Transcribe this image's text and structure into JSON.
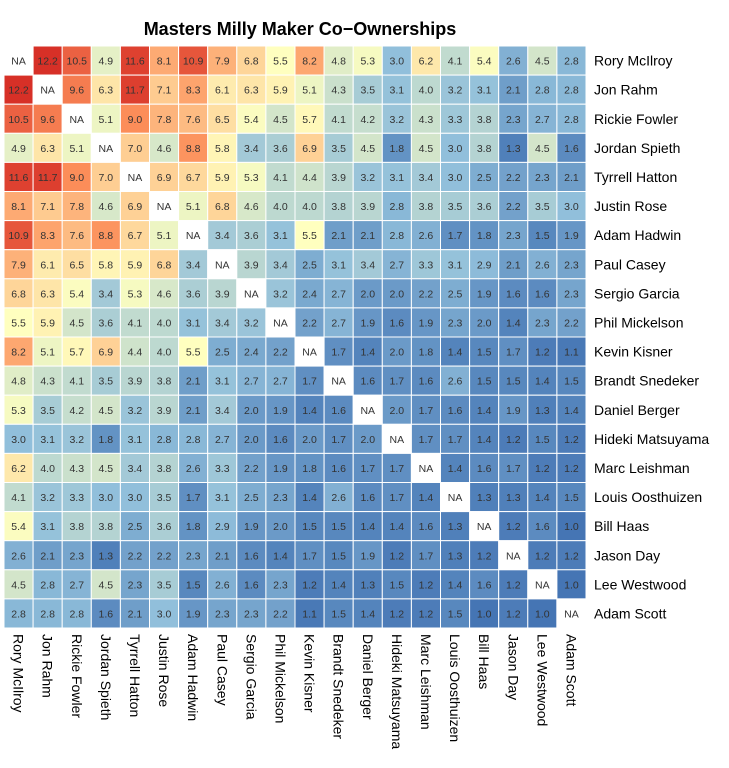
{
  "chart_data": {
    "type": "heatmap",
    "title": "Masters Milly Maker Co−Ownerships",
    "na_label": "NA",
    "rows": [
      "Rory McIlroy",
      "Jon Rahm",
      "Rickie Fowler",
      "Jordan Spieth",
      "Tyrrell Hatton",
      "Justin Rose",
      "Adam Hadwin",
      "Paul Casey",
      "Sergio Garcia",
      "Phil Mickelson",
      "Kevin Kisner",
      "Brandt Snedeker",
      "Daniel Berger",
      "Hideki Matsuyama",
      "Marc Leishman",
      "Louis Oosthuizen",
      "Bill Haas",
      "Jason Day",
      "Lee Westwood",
      "Adam Scott"
    ],
    "columns": [
      "Rory McIlroy",
      "Jon Rahm",
      "Rickie Fowler",
      "Jordan Spieth",
      "Tyrrell Hatton",
      "Justin Rose",
      "Adam Hadwin",
      "Paul Casey",
      "Sergio Garcia",
      "Phil Mickelson",
      "Kevin Kisner",
      "Brandt Snedeker",
      "Daniel Berger",
      "Hideki Matsuyama",
      "Marc Leishman",
      "Louis Oosthuizen",
      "Bill Haas",
      "Jason Day",
      "Lee Westwood",
      "Adam Scott"
    ],
    "values": [
      [
        null,
        12.2,
        10.5,
        4.9,
        11.6,
        8.1,
        10.9,
        7.9,
        6.8,
        5.5,
        8.2,
        4.8,
        5.3,
        3.0,
        6.2,
        4.1,
        5.4,
        2.6,
        4.5,
        2.8
      ],
      [
        12.2,
        null,
        9.6,
        6.3,
        11.7,
        7.1,
        8.3,
        6.1,
        6.3,
        5.9,
        5.1,
        4.3,
        3.5,
        3.1,
        4.0,
        3.2,
        3.1,
        2.1,
        2.8,
        2.8
      ],
      [
        10.5,
        9.6,
        null,
        5.1,
        9.0,
        7.8,
        7.6,
        6.5,
        5.4,
        4.5,
        5.7,
        4.1,
        4.2,
        3.2,
        4.3,
        3.3,
        3.8,
        2.3,
        2.7,
        2.8
      ],
      [
        4.9,
        6.3,
        5.1,
        null,
        7.0,
        4.6,
        8.8,
        5.8,
        3.4,
        3.6,
        6.9,
        3.5,
        4.5,
        1.8,
        4.5,
        3.0,
        3.8,
        1.3,
        4.5,
        1.6
      ],
      [
        11.6,
        11.7,
        9.0,
        7.0,
        null,
        6.9,
        6.7,
        5.9,
        5.3,
        4.1,
        4.4,
        3.9,
        3.2,
        3.1,
        3.4,
        3.0,
        2.5,
        2.2,
        2.3,
        2.1
      ],
      [
        8.1,
        7.1,
        7.8,
        4.6,
        6.9,
        null,
        5.1,
        6.8,
        4.6,
        4.0,
        4.0,
        3.8,
        3.9,
        2.8,
        3.8,
        3.5,
        3.6,
        2.2,
        3.5,
        3.0
      ],
      [
        10.9,
        8.3,
        7.6,
        8.8,
        6.7,
        5.1,
        null,
        3.4,
        3.6,
        3.1,
        5.5,
        2.1,
        2.1,
        2.8,
        2.6,
        1.7,
        1.8,
        2.3,
        1.5,
        1.9
      ],
      [
        7.9,
        6.1,
        6.5,
        5.8,
        5.9,
        6.8,
        3.4,
        null,
        3.9,
        3.4,
        2.5,
        3.1,
        3.4,
        2.7,
        3.3,
        3.1,
        2.9,
        2.1,
        2.6,
        2.3
      ],
      [
        6.8,
        6.3,
        5.4,
        3.4,
        5.3,
        4.6,
        3.6,
        3.9,
        null,
        3.2,
        2.4,
        2.7,
        2.0,
        2.0,
        2.2,
        2.5,
        1.9,
        1.6,
        1.6,
        2.3
      ],
      [
        5.5,
        5.9,
        4.5,
        3.6,
        4.1,
        4.0,
        3.1,
        3.4,
        3.2,
        null,
        2.2,
        2.7,
        1.9,
        1.6,
        1.9,
        2.3,
        2.0,
        1.4,
        2.3,
        2.2
      ],
      [
        8.2,
        5.1,
        5.7,
        6.9,
        4.4,
        4.0,
        5.5,
        2.5,
        2.4,
        2.2,
        null,
        1.7,
        1.4,
        2.0,
        1.8,
        1.4,
        1.5,
        1.7,
        1.2,
        1.1
      ],
      [
        4.8,
        4.3,
        4.1,
        3.5,
        3.9,
        3.8,
        2.1,
        3.1,
        2.7,
        2.7,
        1.7,
        null,
        1.6,
        1.7,
        1.6,
        2.6,
        1.5,
        1.5,
        1.4,
        1.5
      ],
      [
        5.3,
        3.5,
        4.2,
        4.5,
        3.2,
        3.9,
        2.1,
        3.4,
        2.0,
        1.9,
        1.4,
        1.6,
        null,
        2.0,
        1.7,
        1.6,
        1.4,
        1.9,
        1.3,
        1.4
      ],
      [
        3.0,
        3.1,
        3.2,
        1.8,
        3.1,
        2.8,
        2.8,
        2.7,
        2.0,
        1.6,
        2.0,
        1.7,
        2.0,
        null,
        1.7,
        1.7,
        1.4,
        1.2,
        1.5,
        1.2
      ],
      [
        6.2,
        4.0,
        4.3,
        4.5,
        3.4,
        3.8,
        2.6,
        3.3,
        2.2,
        1.9,
        1.8,
        1.6,
        1.7,
        1.7,
        null,
        1.4,
        1.6,
        1.7,
        1.2,
        1.2
      ],
      [
        4.1,
        3.2,
        3.3,
        3.0,
        3.0,
        3.5,
        1.7,
        3.1,
        2.5,
        2.3,
        1.4,
        2.6,
        1.6,
        1.7,
        1.4,
        null,
        1.3,
        1.3,
        1.4,
        1.5
      ],
      [
        5.4,
        3.1,
        3.8,
        3.8,
        2.5,
        3.6,
        1.8,
        2.9,
        1.9,
        2.0,
        1.5,
        1.5,
        1.4,
        1.4,
        1.6,
        1.3,
        null,
        1.2,
        1.6,
        1.0
      ],
      [
        2.6,
        2.1,
        2.3,
        1.3,
        2.2,
        2.2,
        2.3,
        2.1,
        1.6,
        1.4,
        1.7,
        1.5,
        1.9,
        1.2,
        1.7,
        1.3,
        1.2,
        null,
        1.2,
        1.2
      ],
      [
        4.5,
        2.8,
        2.7,
        4.5,
        2.3,
        3.5,
        1.5,
        2.6,
        1.6,
        2.3,
        1.2,
        1.4,
        1.3,
        1.5,
        1.2,
        1.4,
        1.6,
        1.2,
        null,
        1.0
      ],
      [
        2.8,
        2.8,
        2.8,
        1.6,
        2.1,
        3.0,
        1.9,
        2.3,
        2.3,
        2.2,
        1.1,
        1.5,
        1.4,
        1.2,
        1.2,
        1.5,
        1.0,
        1.2,
        1.0,
        null
      ]
    ],
    "color_scale": {
      "low": "#4575b4",
      "mid_low": "#91bfdb",
      "mid": "#ffffbf",
      "mid_high": "#fc8d59",
      "high": "#d73027",
      "na": "#ffffff"
    },
    "legend": "none",
    "grid": true
  }
}
